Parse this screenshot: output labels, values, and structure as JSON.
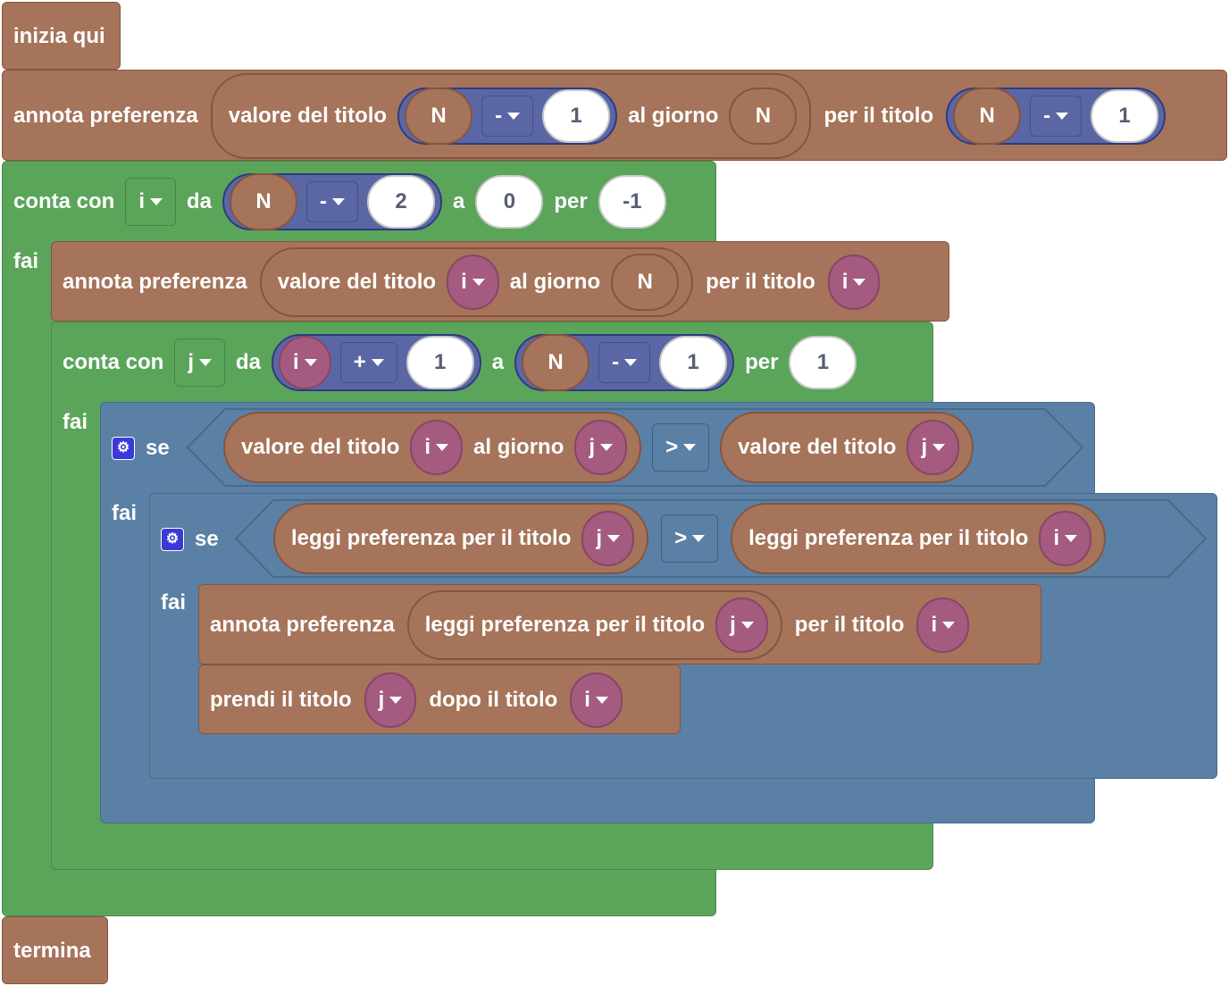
{
  "start": {
    "label": "inizia qui"
  },
  "end": {
    "label": "termina"
  },
  "annota1": {
    "label": "annota preferenza",
    "value_of_title": "valore del titolo",
    "var_n": "N",
    "op": "-",
    "num": "1",
    "al_giorno": "al giorno",
    "day_var": "N",
    "per_il_titolo": "per il titolo",
    "var_n2": "N",
    "op2": "-",
    "num2": "1"
  },
  "loop1": {
    "label": "conta con",
    "var": "i",
    "da": "da",
    "from_var": "N",
    "from_op": "-",
    "from_num": "2",
    "a": "a",
    "to": "0",
    "per": "per",
    "step": "-1",
    "do": "fai"
  },
  "annota2": {
    "label": "annota preferenza",
    "value_of_title": "valore del titolo",
    "var_i": "i",
    "al_giorno": "al giorno",
    "day_var": "N",
    "per_il_titolo": "per il titolo",
    "title_var": "i"
  },
  "loop2": {
    "label": "conta con",
    "var": "j",
    "da": "da",
    "from_var": "i",
    "from_op": "+",
    "from_num": "1",
    "a": "a",
    "to_var": "N",
    "to_op": "-",
    "to_num": "1",
    "per": "per",
    "step": "1",
    "do": "fai"
  },
  "if1": {
    "se": "se",
    "left_label": "valore del titolo",
    "left_var": "i",
    "al_giorno": "al giorno",
    "day_var": "j",
    "op": ">",
    "right_label": "valore del titolo",
    "right_var": "j",
    "do": "fai"
  },
  "if2": {
    "se": "se",
    "left_label": "leggi preferenza per il titolo",
    "left_var": "j",
    "op": ">",
    "right_label": "leggi preferenza per il titolo",
    "right_var": "i",
    "do": "fai"
  },
  "annota3": {
    "label": "annota preferenza",
    "read_label": "leggi preferenza per il titolo",
    "read_var": "j",
    "per_il_titolo": "per il titolo",
    "title_var": "i"
  },
  "prendi": {
    "label": "prendi il titolo",
    "var1": "j",
    "dopo": "dopo il titolo",
    "var2": "i"
  },
  "icons": {
    "gear": "⚙"
  },
  "colors": {
    "event": "#a5745a",
    "loop": "#5ba55b",
    "logic": "#5b80a5",
    "math": "#5b67a5",
    "variable": "#a55b80"
  }
}
